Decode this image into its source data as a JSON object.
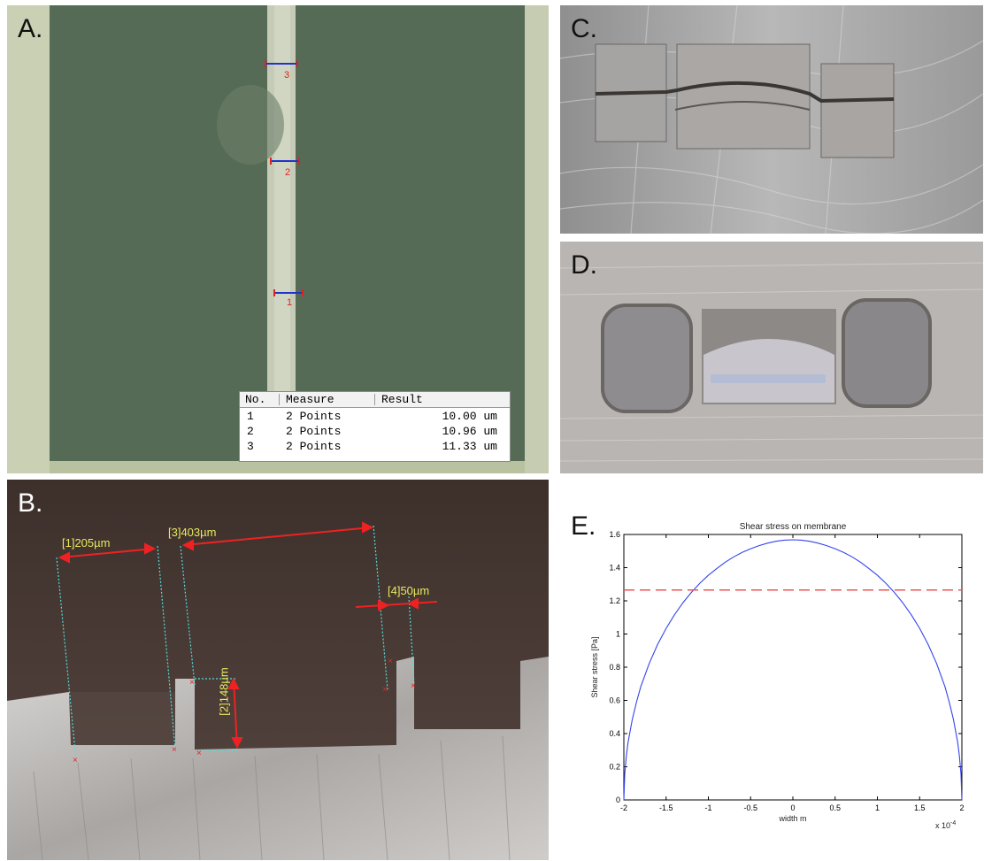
{
  "panels": {
    "a": {
      "label": "A."
    },
    "b": {
      "label": "B."
    },
    "c": {
      "label": "C."
    },
    "d": {
      "label": "D."
    },
    "e": {
      "label": "E."
    }
  },
  "measure_table": {
    "headers": [
      "No.",
      "Measure",
      "Result"
    ],
    "rows": [
      {
        "no": "1",
        "measure": "2 Points",
        "result": "10.00 um"
      },
      {
        "no": "2",
        "measure": "2 Points",
        "result": "10.96 um"
      },
      {
        "no": "3",
        "measure": "2 Points",
        "result": "11.33 um"
      }
    ],
    "markers": [
      "1",
      "2",
      "3"
    ]
  },
  "b_annotations": [
    "[1]205µm",
    "[2]148µm",
    "[3]403µm",
    "[4]50µm"
  ],
  "chart_data": {
    "type": "line",
    "title": "Shear stress on membrane",
    "xlabel": "width m",
    "ylabel": "Shear stress [Pa]",
    "x_multiplier": "x 10",
    "x_exponent": "-4",
    "xlim": [
      -2,
      2
    ],
    "ylim": [
      0,
      1.6
    ],
    "xticks": [
      "-2",
      "-1.5",
      "-1",
      "-0.5",
      "0",
      "0.5",
      "1",
      "1.5",
      "2"
    ],
    "yticks": [
      "0",
      "0.2",
      "0.4",
      "0.6",
      "0.8",
      "1",
      "1.2",
      "1.4",
      "1.6"
    ],
    "series": [
      {
        "color": "#3344ee",
        "style": "solid",
        "x": [
          -2,
          -1.99,
          -1.97,
          -1.95,
          -1.9,
          -1.85,
          -1.8,
          -1.7,
          -1.6,
          -1.5,
          -1.4,
          -1.3,
          -1.2,
          -1.1,
          -1.0,
          -0.9,
          -0.8,
          -0.7,
          -0.6,
          -0.5,
          -0.4,
          -0.3,
          -0.2,
          -0.1,
          0,
          0.1,
          0.2,
          0.3,
          0.4,
          0.5,
          0.6,
          0.7,
          0.8,
          0.9,
          1.0,
          1.1,
          1.2,
          1.3,
          1.4,
          1.5,
          1.6,
          1.7,
          1.8,
          1.85,
          1.9,
          1.95,
          1.97,
          1.99,
          2
        ],
        "y": [
          0,
          0.156,
          0.27,
          0.349,
          0.487,
          0.59,
          0.682,
          0.823,
          0.938,
          1.034,
          1.117,
          1.189,
          1.251,
          1.306,
          1.354,
          1.395,
          1.433,
          1.465,
          1.492,
          1.514,
          1.533,
          1.548,
          1.559,
          1.566,
          1.568,
          1.566,
          1.559,
          1.548,
          1.533,
          1.514,
          1.492,
          1.465,
          1.433,
          1.395,
          1.354,
          1.306,
          1.251,
          1.189,
          1.117,
          1.034,
          0.938,
          0.823,
          0.682,
          0.59,
          0.487,
          0.349,
          0.27,
          0.156,
          0
        ]
      },
      {
        "color": "#ee5555",
        "style": "dashed",
        "x": [
          -2,
          2
        ],
        "y": [
          1.265,
          1.265
        ]
      }
    ]
  }
}
